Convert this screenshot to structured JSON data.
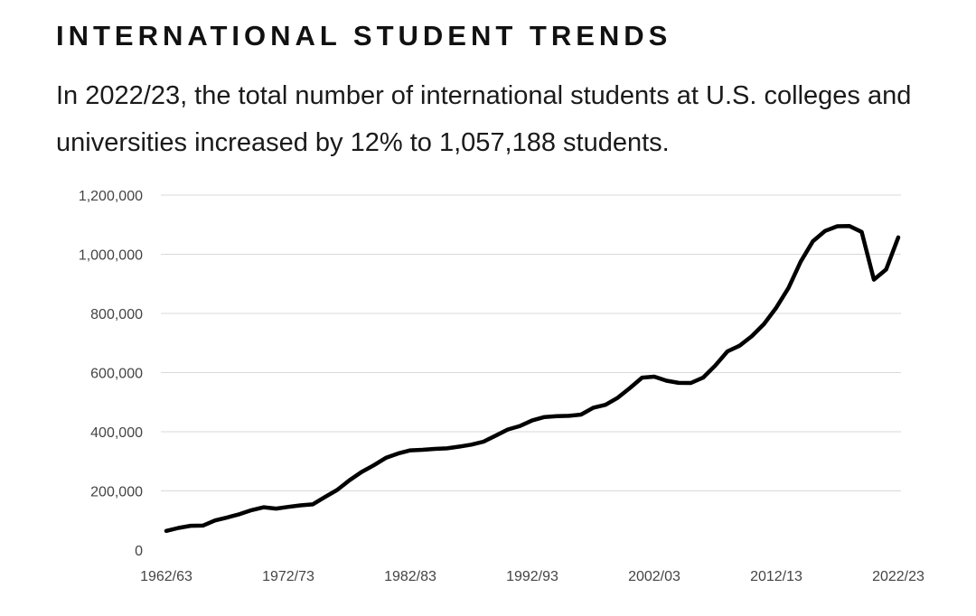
{
  "header": {
    "title": "INTERNATIONAL STUDENT TRENDS",
    "subtitle": "In 2022/23, the total number of international students at U.S. colleges and universities increased by 12% to 1,057,188 students."
  },
  "chart_data": {
    "type": "line",
    "title": "INTERNATIONAL STUDENT TRENDS",
    "xlabel": "",
    "ylabel": "",
    "ylim": [
      0,
      1200000
    ],
    "yticks": [
      0,
      200000,
      400000,
      600000,
      800000,
      1000000,
      1200000
    ],
    "ytick_labels": [
      "0",
      "200,000",
      "400,000",
      "600,000",
      "800,000",
      "1,000,000",
      "1,200,000"
    ],
    "xtick_labels": [
      "1962/63",
      "1972/73",
      "1982/83",
      "1992/93",
      "2002/03",
      "2012/13",
      "2022/23"
    ],
    "grid": true,
    "line_color": "#000000",
    "grid_color": "#d9d9d9",
    "x": [
      "1962/63",
      "1963/64",
      "1964/65",
      "1965/66",
      "1966/67",
      "1967/68",
      "1968/69",
      "1969/70",
      "1970/71",
      "1971/72",
      "1972/73",
      "1973/74",
      "1974/75",
      "1975/76",
      "1976/77",
      "1977/78",
      "1978/79",
      "1979/80",
      "1980/81",
      "1981/82",
      "1982/83",
      "1983/84",
      "1984/85",
      "1985/86",
      "1986/87",
      "1987/88",
      "1988/89",
      "1989/90",
      "1990/91",
      "1991/92",
      "1992/93",
      "1993/94",
      "1994/95",
      "1995/96",
      "1996/97",
      "1997/98",
      "1998/99",
      "1999/00",
      "2000/01",
      "2001/02",
      "2002/03",
      "2003/04",
      "2004/05",
      "2005/06",
      "2006/07",
      "2007/08",
      "2008/09",
      "2009/10",
      "2010/11",
      "2011/12",
      "2012/13",
      "2013/14",
      "2014/15",
      "2015/16",
      "2016/17",
      "2017/18",
      "2018/19",
      "2019/20",
      "2020/21",
      "2021/22",
      "2022/23"
    ],
    "series": [
      {
        "values": [
          64705,
          74814,
          82045,
          82709,
          100262,
          110315,
          121362,
          134959,
          144708,
          140126,
          146097,
          151066,
          154580,
          179344,
          203068,
          235509,
          263938,
          286343,
          311882,
          326299,
          336985,
          338894,
          342113,
          343777,
          349609,
          356187,
          366354,
          386851,
          407529,
          419585,
          438618,
          449749,
          452635,
          453787,
          457984,
          481280,
          490933,
          514723,
          547867,
          582996,
          586323,
          572509,
          565039,
          564766,
          582984,
          623805,
          671616,
          690923,
          723277,
          764495,
          819644,
          886052,
          974926,
          1043839,
          1078822,
          1094792,
          1095299,
          1075496,
          914095,
          948519,
          1057188
        ]
      }
    ]
  }
}
